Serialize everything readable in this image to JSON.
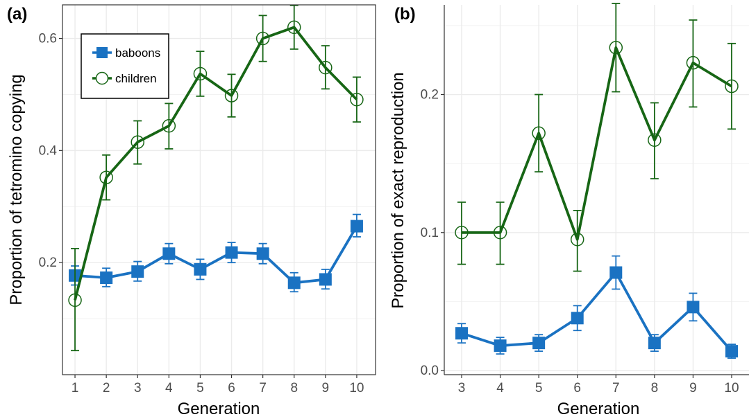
{
  "chart_data": [
    {
      "type": "line",
      "panel_label": "(a)",
      "xlabel": "Generation",
      "ylabel": "Proportion of tetromino copying",
      "x": [
        1,
        2,
        3,
        4,
        5,
        6,
        7,
        8,
        9,
        10
      ],
      "xlim": [
        0.6,
        10.6
      ],
      "ylim": [
        0.0,
        0.66
      ],
      "yticks": [
        0.2,
        0.4,
        0.6
      ],
      "ytick_labels": [
        "0.2",
        "0.4",
        "0.6"
      ],
      "grid": true,
      "legend": {
        "position": "top-left",
        "entries": [
          "baboons",
          "children"
        ]
      },
      "series": [
        {
          "name": "baboons",
          "color": "#1a72c2",
          "marker": "filled-square",
          "values": [
            0.177,
            0.173,
            0.184,
            0.216,
            0.188,
            0.218,
            0.216,
            0.164,
            0.17,
            0.265
          ],
          "err_low": [
            0.16,
            0.157,
            0.167,
            0.198,
            0.17,
            0.2,
            0.198,
            0.148,
            0.153,
            0.246
          ],
          "err_high": [
            0.194,
            0.19,
            0.202,
            0.234,
            0.206,
            0.236,
            0.234,
            0.182,
            0.188,
            0.286
          ]
        },
        {
          "name": "children",
          "color": "#176615",
          "marker": "open-circle",
          "values": [
            0.133,
            0.352,
            0.415,
            0.444,
            0.537,
            0.498,
            0.6,
            0.62,
            0.548,
            0.491
          ],
          "err_low": [
            0.043,
            0.312,
            0.376,
            0.403,
            0.497,
            0.46,
            0.559,
            0.581,
            0.51,
            0.451
          ],
          "err_high": [
            0.225,
            0.392,
            0.453,
            0.484,
            0.577,
            0.536,
            0.641,
            0.659,
            0.587,
            0.531
          ]
        }
      ]
    },
    {
      "type": "line",
      "panel_label": "(b)",
      "xlabel": "Generation",
      "ylabel": "Proportion of exact reproduction",
      "x": [
        3,
        4,
        5,
        6,
        7,
        8,
        9,
        10
      ],
      "xlim": [
        2.55,
        10.45
      ],
      "ylim": [
        -0.003,
        0.265
      ],
      "yticks": [
        0.0,
        0.1,
        0.2
      ],
      "ytick_labels": [
        "0.0",
        "0.1",
        "0.2"
      ],
      "grid": true,
      "series": [
        {
          "name": "baboons",
          "color": "#1a72c2",
          "marker": "filled-square",
          "values": [
            0.027,
            0.018,
            0.02,
            0.038,
            0.071,
            0.02,
            0.046,
            0.014
          ],
          "err_low": [
            0.02,
            0.012,
            0.014,
            0.029,
            0.059,
            0.014,
            0.036,
            0.009
          ],
          "err_high": [
            0.034,
            0.024,
            0.026,
            0.047,
            0.083,
            0.026,
            0.056,
            0.019
          ]
        },
        {
          "name": "children",
          "color": "#176615",
          "marker": "open-circle",
          "values": [
            0.1,
            0.1,
            0.172,
            0.095,
            0.234,
            0.167,
            0.223,
            0.206
          ],
          "err_low": [
            0.077,
            0.077,
            0.144,
            0.072,
            0.202,
            0.139,
            0.191,
            0.175
          ],
          "err_high": [
            0.122,
            0.122,
            0.2,
            0.116,
            0.266,
            0.194,
            0.254,
            0.237
          ]
        }
      ]
    }
  ]
}
